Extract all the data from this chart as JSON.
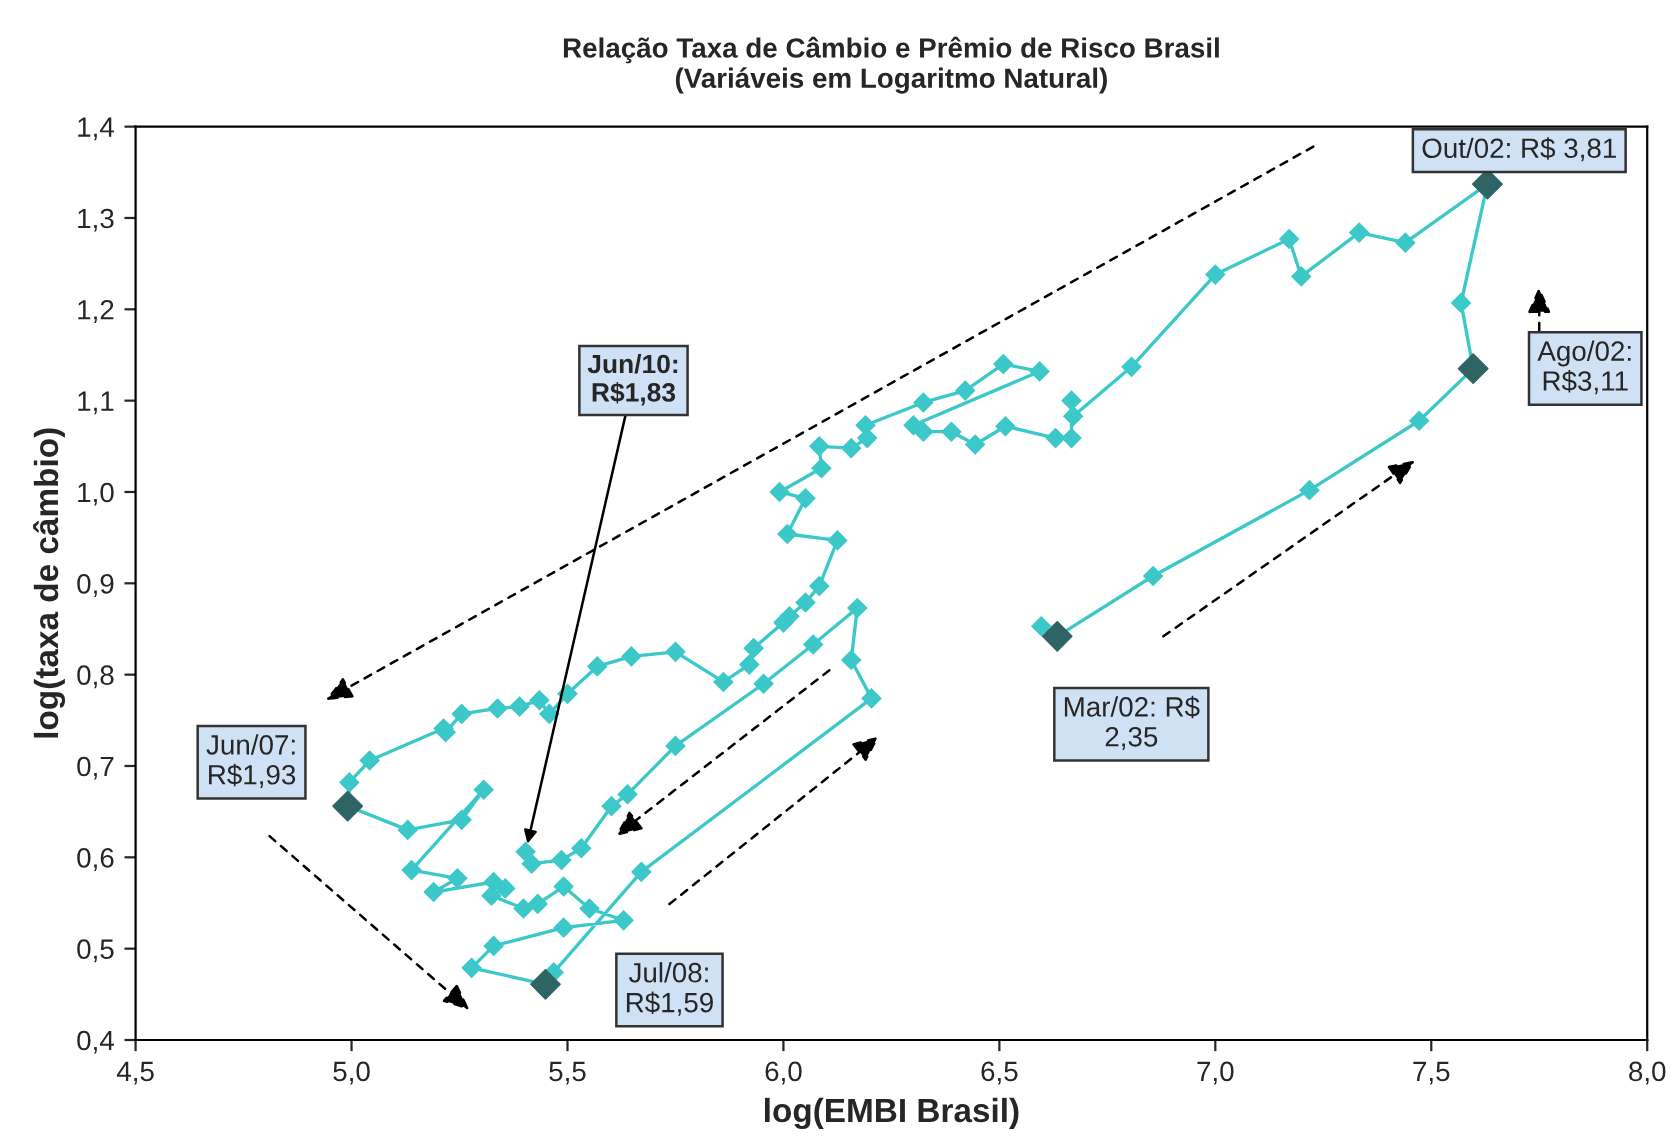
{
  "chart_data": {
    "type": "line",
    "title": "Relação Taxa de Câmbio e Prêmio de Risco Brasil\n(Variáveis em Logaritmo Natural)",
    "xlabel": "log(EMBI Brasil)",
    "ylabel": "log(taxa de câmbio)",
    "xlim": [
      4.5,
      8.0
    ],
    "ylim": [
      0.4,
      1.4
    ],
    "xticks": [
      {
        "value": 4.5,
        "label": "4,5"
      },
      {
        "value": 5.0,
        "label": "5,0"
      },
      {
        "value": 5.5,
        "label": "5,5"
      },
      {
        "value": 6.0,
        "label": "6,0"
      },
      {
        "value": 6.5,
        "label": "6,5"
      },
      {
        "value": 7.0,
        "label": "7,0"
      },
      {
        "value": 7.5,
        "label": "7,5"
      },
      {
        "value": 8.0,
        "label": "8,0"
      }
    ],
    "yticks": [
      {
        "value": 0.4,
        "label": "0,4"
      },
      {
        "value": 0.5,
        "label": "0,5"
      },
      {
        "value": 0.6,
        "label": "0,6"
      },
      {
        "value": 0.7,
        "label": "0,7"
      },
      {
        "value": 0.8,
        "label": "0,8"
      },
      {
        "value": 0.9,
        "label": "0,9"
      },
      {
        "value": 1.0,
        "label": "1,0"
      },
      {
        "value": 1.1,
        "label": "1,1"
      },
      {
        "value": 1.2,
        "label": "1,2"
      },
      {
        "value": 1.3,
        "label": "1,3"
      },
      {
        "value": 1.4,
        "label": "1,4"
      }
    ],
    "grid": false,
    "marker": "diamond",
    "line_style": "solid",
    "series": [
      {
        "color": "#3cc8c8",
        "x": [
          6.597,
          6.634,
          6.856,
          7.218,
          7.472,
          7.597,
          7.569,
          7.63,
          7.44,
          7.333,
          7.199,
          7.171,
          7.0,
          6.806,
          6.671,
          6.667,
          6.667,
          6.63,
          6.514,
          6.444,
          6.389,
          6.324,
          6.301,
          6.593,
          6.509,
          6.421,
          6.324,
          6.19,
          6.194,
          6.157,
          6.083,
          6.088,
          5.991,
          6.051,
          6.009,
          6.125,
          6.083,
          6.051,
          6.014,
          6.0,
          5.931,
          5.921,
          5.861,
          5.75,
          5.648,
          5.569,
          5.5,
          5.458,
          5.435,
          5.389,
          5.338,
          5.255,
          5.218,
          5.213,
          5.042,
          4.995,
          4.991,
          5.13,
          5.255,
          5.306,
          5.139,
          5.245,
          5.19,
          5.329,
          5.356,
          5.324,
          5.398,
          5.431,
          5.491,
          5.551,
          5.63,
          5.491,
          5.329,
          5.278,
          5.449,
          5.468,
          5.671,
          6.204,
          6.157,
          6.171,
          6.069,
          5.954,
          5.75,
          5.639,
          5.602,
          5.532,
          5.486,
          5.417,
          5.403
        ],
        "values": [
          0.853,
          0.842,
          0.908,
          1.002,
          1.078,
          1.135,
          1.207,
          1.337,
          1.273,
          1.284,
          1.236,
          1.277,
          1.238,
          1.137,
          1.083,
          1.1,
          1.059,
          1.059,
          1.072,
          1.052,
          1.066,
          1.066,
          1.073,
          1.132,
          1.14,
          1.111,
          1.098,
          1.073,
          1.059,
          1.048,
          1.05,
          1.026,
          1.0,
          0.993,
          0.954,
          0.947,
          0.897,
          0.879,
          0.864,
          0.857,
          0.829,
          0.811,
          0.792,
          0.825,
          0.82,
          0.809,
          0.779,
          0.757,
          0.772,
          0.765,
          0.763,
          0.757,
          0.737,
          0.741,
          0.706,
          0.682,
          0.656,
          0.63,
          0.641,
          0.674,
          0.586,
          0.577,
          0.562,
          0.573,
          0.566,
          0.558,
          0.544,
          0.549,
          0.568,
          0.544,
          0.531,
          0.523,
          0.503,
          0.479,
          0.461,
          0.474,
          0.584,
          0.774,
          0.816,
          0.873,
          0.833,
          0.79,
          0.722,
          0.669,
          0.656,
          0.61,
          0.597,
          0.593,
          0.606
        ]
      },
      {
        "type": "scatter",
        "color": "#2e6464",
        "x": [
          6.634,
          7.597,
          7.63,
          4.991,
          5.449
        ],
        "values": [
          0.842,
          1.135,
          1.337,
          0.656,
          0.461
        ]
      }
    ],
    "annotations": [
      "Out/02: R$ 3,81",
      "Ago/02:\nR$3,11",
      "Mar/02: R$\n2,35",
      "Jun/07:\nR$1,93",
      "Jul/08:\nR$1,59",
      {
        "text": "Jun/10:\nR$1,83",
        "x": 5.403,
        "y": 0.606
      }
    ]
  }
}
